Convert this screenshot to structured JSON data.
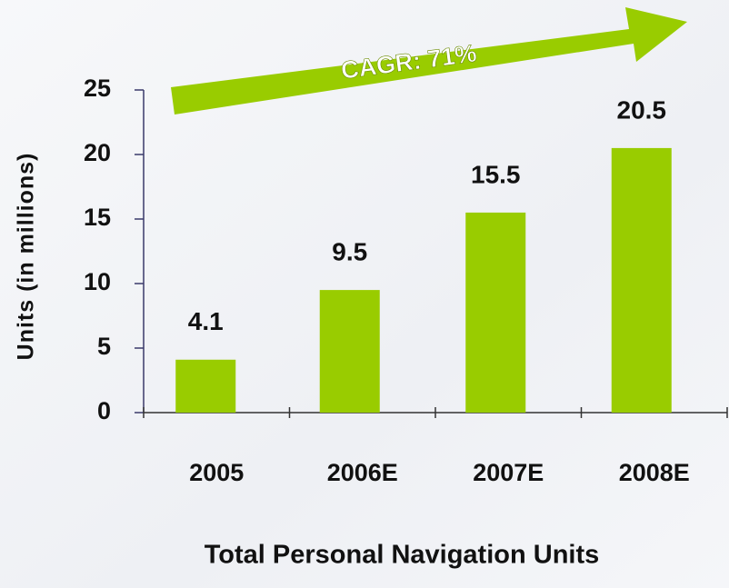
{
  "chart_data": {
    "type": "bar",
    "categories": [
      "2005",
      "2006E",
      "2007E",
      "2008E"
    ],
    "values": [
      4.1,
      9.5,
      15.5,
      20.5
    ],
    "color": "#99cc00",
    "ylim": [
      0,
      25
    ],
    "yticks": [
      0,
      5,
      10,
      15,
      20,
      25
    ],
    "y_label": "Units (in millions)",
    "x_label": "Total Personal Navigation Units",
    "annotation": "CAGR: 71%",
    "value_labels_shown": true
  }
}
